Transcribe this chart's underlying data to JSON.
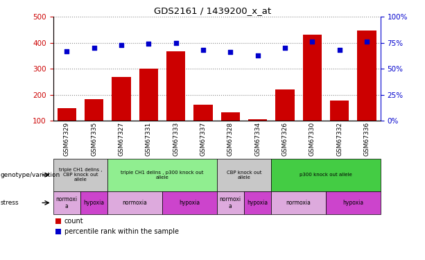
{
  "title": "GDS2161 / 1439200_x_at",
  "samples": [
    "GSM67329",
    "GSM67335",
    "GSM67327",
    "GSM67331",
    "GSM67333",
    "GSM67337",
    "GSM67328",
    "GSM67334",
    "GSM67326",
    "GSM67330",
    "GSM67332",
    "GSM67336"
  ],
  "counts": [
    148,
    183,
    270,
    300,
    368,
    163,
    133,
    107,
    220,
    432,
    178,
    447
  ],
  "percentiles": [
    67,
    70,
    73,
    74,
    75,
    68,
    66,
    63,
    70,
    76,
    68,
    76
  ],
  "ylim_left": [
    100,
    500
  ],
  "ylim_right": [
    0,
    100
  ],
  "yticks_left": [
    100,
    200,
    300,
    400,
    500
  ],
  "yticks_right": [
    0,
    25,
    50,
    75,
    100
  ],
  "bar_color": "#cc0000",
  "dot_color": "#0000cc",
  "genotype_groups": [
    {
      "label": "triple CH1 delins ,\nCBP knock out\nallele",
      "start": 0,
      "end": 2,
      "color": "#c8c8c8"
    },
    {
      "label": "triple CH1 delins , p300 knock out\nallele",
      "start": 2,
      "end": 6,
      "color": "#90ee90"
    },
    {
      "label": "CBP knock out\nallele",
      "start": 6,
      "end": 8,
      "color": "#c8c8c8"
    },
    {
      "label": "p300 knock out allele",
      "start": 8,
      "end": 12,
      "color": "#44cc44"
    }
  ],
  "stress_groups": [
    {
      "label": "normoxi\na",
      "start": 0,
      "end": 1,
      "color": "#ddaadd"
    },
    {
      "label": "hypoxia",
      "start": 1,
      "end": 2,
      "color": "#cc44cc"
    },
    {
      "label": "normoxia",
      "start": 2,
      "end": 4,
      "color": "#ddaadd"
    },
    {
      "label": "hypoxia",
      "start": 4,
      "end": 6,
      "color": "#cc44cc"
    },
    {
      "label": "normoxi\na",
      "start": 6,
      "end": 7,
      "color": "#ddaadd"
    },
    {
      "label": "hypoxia",
      "start": 7,
      "end": 8,
      "color": "#cc44cc"
    },
    {
      "label": "normoxia",
      "start": 8,
      "end": 10,
      "color": "#ddaadd"
    },
    {
      "label": "hypoxia",
      "start": 10,
      "end": 12,
      "color": "#cc44cc"
    }
  ],
  "genotype_label": "genotype/variation",
  "stress_label": "stress",
  "legend_count_label": "count",
  "legend_percentile_label": "percentile rank within the sample",
  "grid_color": "#888888",
  "background_color": "#ffffff",
  "left_axis_color": "#cc0000",
  "right_axis_color": "#0000cc"
}
